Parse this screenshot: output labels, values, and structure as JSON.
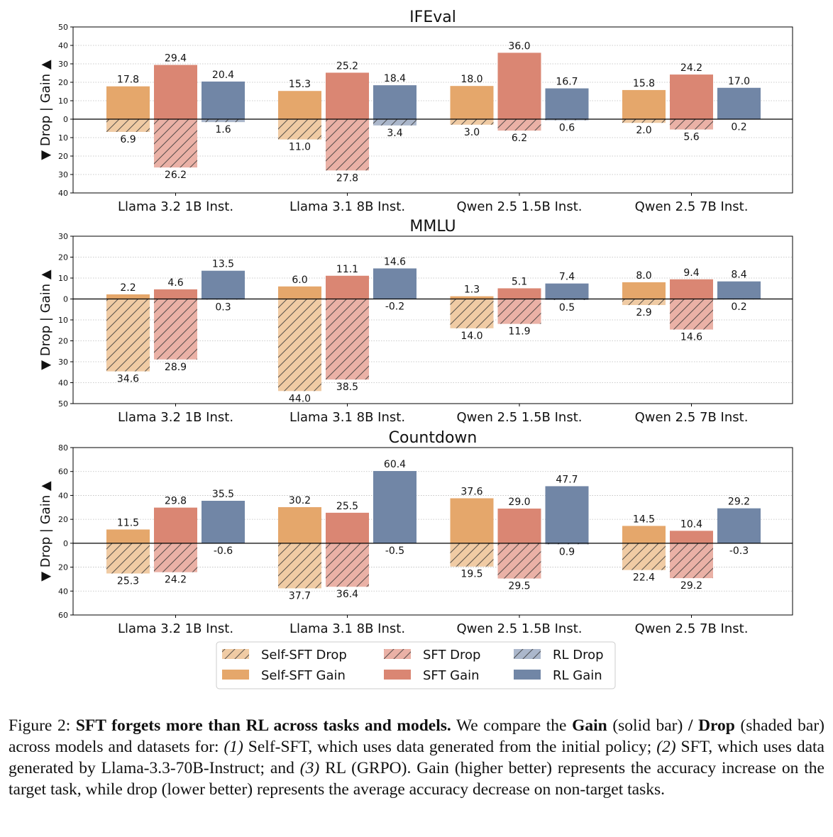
{
  "chart_data": [
    {
      "type": "bar",
      "title": "IFEval",
      "ylabel": "▼ Drop | Gain ▲",
      "ylim": [
        -40,
        50
      ],
      "yticks": [
        50,
        40,
        30,
        20,
        10,
        0,
        -10,
        -20,
        -30,
        -40
      ],
      "categories": [
        "Llama 3.2 1B Inst.",
        "Llama 3.1 8B Inst.",
        "Qwen 2.5 1.5B Inst.",
        "Qwen 2.5 7B Inst."
      ],
      "series": [
        {
          "name": "Self-SFT",
          "gain": [
            17.8,
            15.3,
            18.0,
            15.8
          ],
          "drop": [
            6.9,
            11.0,
            3.0,
            2.0
          ]
        },
        {
          "name": "SFT",
          "gain": [
            29.4,
            25.2,
            36.0,
            24.2
          ],
          "drop": [
            26.2,
            27.8,
            6.2,
            5.6
          ]
        },
        {
          "name": "RL",
          "gain": [
            20.4,
            18.4,
            16.7,
            17.0
          ],
          "drop": [
            1.6,
            3.4,
            0.6,
            0.2
          ]
        }
      ]
    },
    {
      "type": "bar",
      "title": "MMLU",
      "ylabel": "▼ Drop | Gain ▲",
      "ylim": [
        -50,
        30
      ],
      "yticks": [
        30,
        20,
        10,
        0,
        -10,
        -20,
        -30,
        -40,
        -50
      ],
      "categories": [
        "Llama 3.2 1B Inst.",
        "Llama 3.1 8B Inst.",
        "Qwen 2.5 1.5B Inst.",
        "Qwen 2.5 7B Inst."
      ],
      "series": [
        {
          "name": "Self-SFT",
          "gain": [
            2.2,
            6.0,
            1.3,
            8.0
          ],
          "drop": [
            34.6,
            44.0,
            14.0,
            2.9
          ]
        },
        {
          "name": "SFT",
          "gain": [
            4.6,
            11.1,
            5.1,
            9.4
          ],
          "drop": [
            28.9,
            38.5,
            11.9,
            14.6
          ]
        },
        {
          "name": "RL",
          "gain": [
            13.5,
            14.6,
            7.4,
            8.4
          ],
          "drop": [
            0.3,
            -0.2,
            0.5,
            0.2
          ]
        }
      ]
    },
    {
      "type": "bar",
      "title": "Countdown",
      "ylabel": "▼ Drop | Gain ▲",
      "ylim": [
        -60,
        80
      ],
      "yticks": [
        80,
        60,
        40,
        20,
        0,
        -20,
        -40,
        -60
      ],
      "categories": [
        "Llama 3.2 1B Inst.",
        "Llama 3.1 8B Inst.",
        "Qwen 2.5 1.5B Inst.",
        "Qwen 2.5 7B Inst."
      ],
      "series": [
        {
          "name": "Self-SFT",
          "gain": [
            11.5,
            30.2,
            37.6,
            14.5
          ],
          "drop": [
            25.3,
            37.7,
            19.5,
            22.4
          ]
        },
        {
          "name": "SFT",
          "gain": [
            29.8,
            25.5,
            29.0,
            10.4
          ],
          "drop": [
            24.2,
            36.4,
            29.5,
            29.2
          ]
        },
        {
          "name": "RL",
          "gain": [
            35.5,
            60.4,
            47.7,
            29.2
          ],
          "drop": [
            -0.6,
            -0.5,
            0.9,
            -0.3
          ]
        }
      ]
    }
  ],
  "legend": {
    "placement": "bottom-center",
    "entries": [
      {
        "label": "Self-SFT Drop",
        "color": "#F0CBA4",
        "hatched": true
      },
      {
        "label": "Self-SFT Gain",
        "color": "#E5A76B",
        "hatched": false
      },
      {
        "label": "SFT Drop",
        "color": "#EAB1A6",
        "hatched": true
      },
      {
        "label": "SFT Gain",
        "color": "#DA8673",
        "hatched": false
      },
      {
        "label": "RL Drop",
        "color": "#ABB7CB",
        "hatched": true
      },
      {
        "label": "RL Gain",
        "color": "#7186A6",
        "hatched": false
      }
    ]
  },
  "colors": {
    "gain": [
      "#E5A76B",
      "#DA8673",
      "#7186A6"
    ],
    "drop": [
      "#F0CBA4",
      "#EAB1A6",
      "#ABB7CB"
    ]
  },
  "caption": {
    "label": "Figure 2: ",
    "bold_title": "SFT forgets more than RL across tasks and models.",
    "t1": " We compare the ",
    "b_gain": "Gain",
    "t2": " (solid bar) ",
    "b_slash": "/",
    "b_drop": "Drop",
    "t3": " (shaded bar) across models and datasets for: ",
    "i1": "(1)",
    "t4": " Self-SFT, which uses data generated from the initial policy; ",
    "i2": "(2)",
    "t5": " SFT, which uses data generated by Llama-3.3-70B-Instruct; and ",
    "i3": "(3)",
    "t6": " RL (GRPO). Gain (higher better) represents the accuracy increase on the target task, while drop (lower better) represents the average accuracy decrease on non-target tasks."
  }
}
